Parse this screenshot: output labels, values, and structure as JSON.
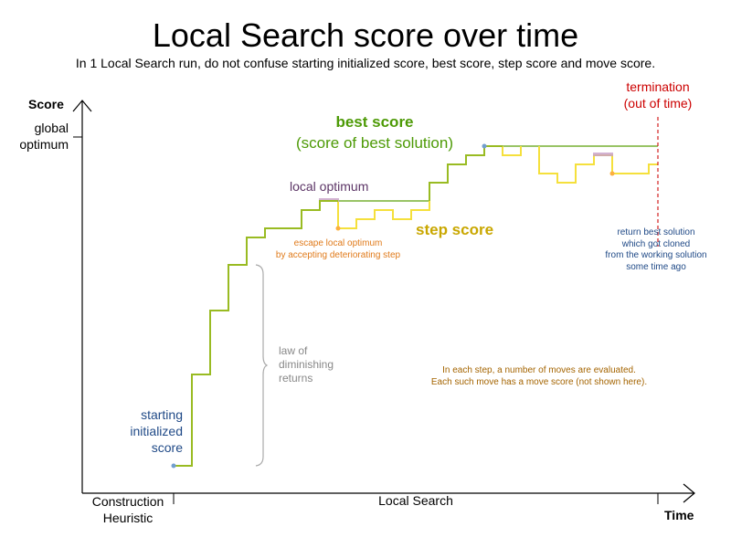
{
  "title": "Local Search score over time",
  "subtitle": "In 1 Local Search run, do not confuse starting initialized score, best score, step score and move score.",
  "axes": {
    "y_label": "Score",
    "y_tick": [
      "global",
      "optimum"
    ],
    "x_label": "Time",
    "x_phases": [
      [
        "Construction",
        "Heuristic"
      ],
      [
        "Local Search"
      ]
    ]
  },
  "labels": {
    "best_score": [
      "best score",
      "(score of best solution)"
    ],
    "step_score": "step score",
    "local_optimum": "local optimum",
    "escape": [
      "escape local optimum",
      "by accepting deteriorating step"
    ],
    "starting": [
      "starting",
      "initialized",
      "score"
    ],
    "diminishing": [
      "law of",
      "diminishing",
      "returns"
    ],
    "termination": [
      "termination",
      "(out of time)"
    ],
    "return_best": [
      "return best solution",
      "which got cloned",
      "from the working solution",
      "some time ago"
    ],
    "moves_note": [
      "In each step, a number of moves are evaluated.",
      "Each such move has a move score (not shown here)."
    ]
  },
  "colors": {
    "best": "#99bb22",
    "best_line": "#99c466",
    "step": "#f5e03c",
    "best_text": "#4d9a06",
    "step_text": "#c9a700",
    "local_opt_text": "#5c3566",
    "escape_text": "#e07a1a",
    "start_text": "#204a87",
    "termination": "#cc0000",
    "note_text": "#a46400"
  }
}
